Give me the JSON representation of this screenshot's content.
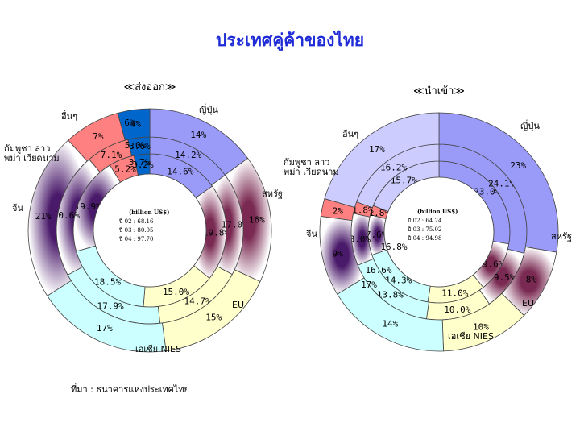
{
  "page_title": "ประเทศคู่ค้าของไทย",
  "source_note": "ที่มา : ธนาคารแห่งประเทศไทย",
  "chart_data": [
    {
      "type": "pie",
      "title": "ส่งออก",
      "title_decor": [
        "≪",
        "≫"
      ],
      "unit_label": "(billion US$)",
      "years": [
        {
          "label": "ปี 02",
          "total": "68.16"
        },
        {
          "label": "ปี 03",
          "total": "80.05"
        },
        {
          "label": "ปี 04",
          "total": "97.70"
        }
      ],
      "rings": [
        {
          "name": "ปี 02",
          "values": [
            14.6,
            19.8,
            15.0,
            18.5,
            19.9,
            5.2,
            3.2
          ]
        },
        {
          "name": "ปี 03",
          "values": [
            14.2,
            17.0,
            14.7,
            17.9,
            20.6,
            7.1,
            3.6
          ]
        },
        {
          "name": "ปี 04",
          "values": [
            14,
            16,
            15,
            17,
            21,
            7,
            4
          ]
        }
      ],
      "ring_labels": [
        [
          "14.6%",
          "19.8%",
          "15.0%",
          "18.5%",
          "19.9%",
          "5.2%",
          "3.2%"
        ],
        [
          "14.2%",
          "17.0%",
          "14.7%",
          "17.9%",
          "20.6%",
          "7.1%",
          "3.6%"
        ],
        [
          "14%",
          "16%",
          "15%",
          "17%",
          "21%",
          "7%",
          "4%"
        ]
      ],
      "extra_labels": [
        "3.7%",
        "5.0%",
        "6%"
      ],
      "categories": [
        {
          "name": "ญี่ปุ่น",
          "color": "#9a9af8"
        },
        {
          "name": "สหรัฐ",
          "color": "#7a2a52"
        },
        {
          "name": "EU",
          "color": "#ffffcc"
        },
        {
          "name": "เอเชีย NIES",
          "color": "#ccffff"
        },
        {
          "name": "จีน",
          "color": "#4a1a6a"
        },
        {
          "name": "กัมพูชา ลาว พม่า เวียดนาม",
          "color": "#ff8080"
        },
        {
          "name": "อื่นๆ",
          "color": "#0066cc"
        }
      ]
    },
    {
      "type": "pie",
      "title": "นำเข้า",
      "title_decor": [
        "≪",
        "≫"
      ],
      "unit_label": "(billion US$)",
      "years": [
        {
          "label": "ปี 02",
          "total": "64.24"
        },
        {
          "label": "ปี 03",
          "total": "75.02"
        },
        {
          "label": "ปี 04",
          "total": "94.98"
        }
      ],
      "rings": [
        {
          "name": "ปี 02",
          "values": [
            23.0,
            9.6,
            11.0,
            14.3,
            7.6,
            1.8,
            15.7
          ]
        },
        {
          "name": "ปี 03",
          "values": [
            24.1,
            9.5,
            10.0,
            13.8,
            8.0,
            1.8,
            16.2
          ]
        },
        {
          "name": "ปี 04",
          "values": [
            23,
            8,
            10,
            14,
            9,
            2,
            17
          ]
        }
      ],
      "ring_labels": [
        [
          "23.0%",
          "9.6%",
          "11.0%",
          "14.3%",
          "7.6%",
          "1.8%",
          "15.7%"
        ],
        [
          "24.1%",
          "9.5%",
          "10.0%",
          "13.8%",
          "8.0%",
          "1.8%",
          "16.2%"
        ],
        [
          "23%",
          "8%",
          "10%",
          "14%",
          "9%",
          "2%",
          "17%"
        ]
      ],
      "extra_labels": [
        "16.8%",
        "16.6%",
        "17%"
      ],
      "categories": [
        {
          "name": "ญี่ปุ่น",
          "color": "#9a9af8"
        },
        {
          "name": "สหรัฐ",
          "color": "#7a2a52"
        },
        {
          "name": "EU",
          "color": "#ffffcc"
        },
        {
          "name": "เอเชีย NIES",
          "color": "#ccffff"
        },
        {
          "name": "จีน",
          "color": "#4a1a6a"
        },
        {
          "name": "กัมพูชา ลาว พม่า เวียดนาม",
          "color": "#ff8080"
        },
        {
          "name": "อื่นๆ",
          "color": "#ccccff"
        }
      ]
    }
  ]
}
